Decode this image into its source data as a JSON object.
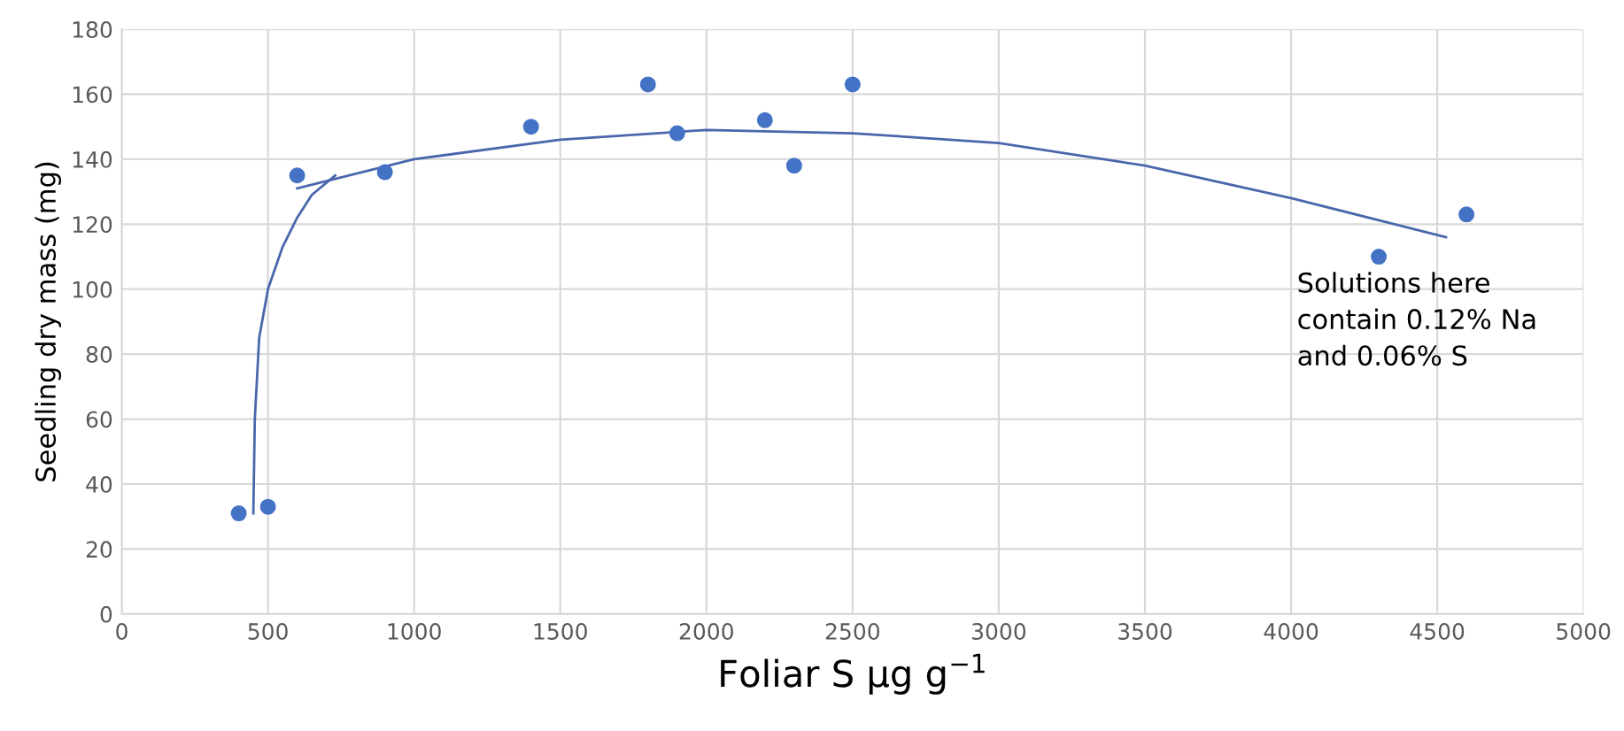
{
  "chart_data": {
    "type": "scatter",
    "xlabel": "Foliar S µg g$^{−1}$",
    "ylabel": "Seedling dry mass (mg)",
    "xlim": [
      0,
      5000
    ],
    "xticks": [
      0,
      500,
      1000,
      1500,
      2000,
      2500,
      3000,
      3500,
      4000,
      4500,
      5000
    ],
    "ylim": [
      0,
      180
    ],
    "yticks": [
      0,
      20,
      40,
      60,
      80,
      100,
      120,
      140,
      160,
      180
    ],
    "grid": true,
    "marker": "circle",
    "series": [
      {
        "color": "#4472c4",
        "x": [
          400,
          500,
          600,
          900,
          1400,
          1800,
          1900,
          2200,
          2300,
          2500,
          4300,
          4600
        ],
        "values": [
          31,
          33,
          135,
          136,
          150,
          163,
          148,
          152,
          138,
          163,
          110,
          123
        ]
      },
      {
        "type": "line",
        "color": "#4a66ac",
        "marker": "none",
        "x": [
          450,
          455,
          470,
          500,
          550,
          600,
          650,
          730
        ],
        "values": [
          31,
          60,
          85,
          100,
          113,
          122,
          129,
          135
        ]
      },
      {
        "type": "line",
        "color": "#4a66ac",
        "marker": "none",
        "x": [
          600,
          1000,
          1500,
          2000,
          2500,
          3000,
          3500,
          4000,
          4530
        ],
        "values": [
          131,
          140,
          146,
          149,
          148,
          145,
          138,
          128,
          116
        ]
      }
    ],
    "annotations": [
      "Solutions here\ncontain 0.12% Na\nand 0.06% S"
    ]
  }
}
